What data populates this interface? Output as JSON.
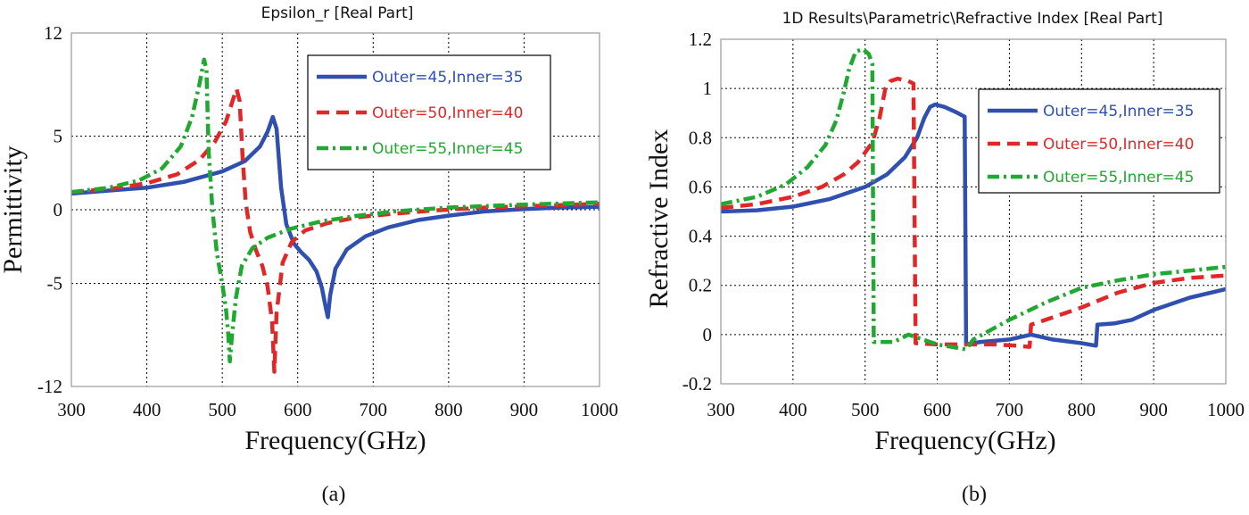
{
  "panels": [
    {
      "caption": "(a)",
      "frame_color": "#999999",
      "legend_position": "top-right"
    },
    {
      "caption": "(b)",
      "frame_color": "#999999",
      "legend_position": "right"
    }
  ],
  "chart_data": [
    {
      "type": "line",
      "title": "Epsilon_r [Real Part]",
      "xlabel": "Frequency(GHz)",
      "ylabel": "Permittivity",
      "xlim": [
        300,
        1000
      ],
      "ylim": [
        -12,
        12
      ],
      "xticks": [
        300,
        400,
        500,
        600,
        700,
        800,
        900,
        1000
      ],
      "xtick_labels": [
        "300",
        "400",
        "500",
        "600",
        "700",
        "800",
        "900",
        "1000"
      ],
      "yticks": [
        -12,
        -5,
        0,
        5,
        12
      ],
      "ytick_labels": [
        "-12",
        "-5",
        "0",
        "5",
        "12"
      ],
      "grid": true,
      "series": [
        {
          "name": "Outer=45,Inner=35",
          "color": "#3050b0",
          "style": "solid",
          "points": [
            [
              300,
              1.1
            ],
            [
              350,
              1.3
            ],
            [
              400,
              1.5
            ],
            [
              450,
              1.9
            ],
            [
              500,
              2.6
            ],
            [
              530,
              3.3
            ],
            [
              550,
              4.3
            ],
            [
              560,
              5.3
            ],
            [
              567,
              6.3
            ],
            [
              572,
              5.5
            ],
            [
              578,
              1.5
            ],
            [
              585,
              -1.0
            ],
            [
              595,
              -2.3
            ],
            [
              605,
              -2.9
            ],
            [
              615,
              -3.4
            ],
            [
              625,
              -4.2
            ],
            [
              632,
              -5.3
            ],
            [
              637,
              -6.6
            ],
            [
              640,
              -7.3
            ],
            [
              643,
              -5.8
            ],
            [
              650,
              -4.0
            ],
            [
              665,
              -2.7
            ],
            [
              690,
              -1.8
            ],
            [
              720,
              -1.2
            ],
            [
              760,
              -0.7
            ],
            [
              800,
              -0.4
            ],
            [
              850,
              -0.1
            ],
            [
              900,
              0.05
            ],
            [
              950,
              0.15
            ],
            [
              1000,
              0.2
            ]
          ]
        },
        {
          "name": "Outer=50,Inner=40",
          "color": "#e02828",
          "style": "dashed",
          "points": [
            [
              300,
              1.2
            ],
            [
              350,
              1.4
            ],
            [
              400,
              1.8
            ],
            [
              440,
              2.4
            ],
            [
              470,
              3.4
            ],
            [
              490,
              4.6
            ],
            [
              505,
              6.0
            ],
            [
              515,
              7.6
            ],
            [
              519,
              8.2
            ],
            [
              523,
              7.4
            ],
            [
              527,
              3.5
            ],
            [
              531,
              0.5
            ],
            [
              537,
              -1.5
            ],
            [
              545,
              -2.8
            ],
            [
              553,
              -3.8
            ],
            [
              560,
              -5.2
            ],
            [
              566,
              -7.6
            ],
            [
              569,
              -11.0
            ],
            [
              572,
              -7.0
            ],
            [
              580,
              -3.6
            ],
            [
              592,
              -2.2
            ],
            [
              610,
              -1.4
            ],
            [
              640,
              -0.9
            ],
            [
              680,
              -0.5
            ],
            [
              720,
              -0.3
            ],
            [
              780,
              -0.05
            ],
            [
              850,
              0.15
            ],
            [
              1000,
              0.4
            ]
          ]
        },
        {
          "name": "Outer=55,Inner=45",
          "color": "#20a830",
          "style": "dashdot",
          "points": [
            [
              300,
              1.2
            ],
            [
              350,
              1.5
            ],
            [
              390,
              2.0
            ],
            [
              420,
              2.8
            ],
            [
              445,
              4.3
            ],
            [
              460,
              6.3
            ],
            [
              470,
              8.6
            ],
            [
              476,
              10.2
            ],
            [
              479,
              9.5
            ],
            [
              482,
              4.0
            ],
            [
              487,
              0.0
            ],
            [
              493,
              -3.0
            ],
            [
              500,
              -5.0
            ],
            [
              505,
              -6.8
            ],
            [
              508,
              -8.5
            ],
            [
              510,
              -10.3
            ],
            [
              513,
              -8.5
            ],
            [
              518,
              -6.0
            ],
            [
              526,
              -3.8
            ],
            [
              540,
              -2.6
            ],
            [
              560,
              -1.9
            ],
            [
              590,
              -1.3
            ],
            [
              630,
              -0.8
            ],
            [
              680,
              -0.4
            ],
            [
              730,
              -0.1
            ],
            [
              800,
              0.15
            ],
            [
              900,
              0.35
            ],
            [
              1000,
              0.5
            ]
          ]
        }
      ]
    },
    {
      "type": "line",
      "title": "1D Results\\Parametric\\Refractive Index [Real Part]",
      "xlabel": "Frequency(GHz)",
      "ylabel": "Refractive Index",
      "xlim": [
        300,
        1000
      ],
      "ylim": [
        -0.2,
        1.2
      ],
      "xticks": [
        300,
        400,
        500,
        600,
        700,
        800,
        900,
        1000
      ],
      "xtick_labels": [
        "300",
        "400",
        "500",
        "600",
        "700",
        "800",
        "900",
        "1000"
      ],
      "yticks": [
        -0.2,
        0,
        0.2,
        0.4,
        0.6,
        0.8,
        1,
        1.2
      ],
      "ytick_labels": [
        "-0.2",
        "0",
        "0.2",
        "0.4",
        "0.6",
        "0.8",
        "1",
        "1.2"
      ],
      "grid": true,
      "series": [
        {
          "name": "Outer=45,Inner=35",
          "color": "#3050b0",
          "style": "solid",
          "points": [
            [
              300,
              0.5
            ],
            [
              350,
              0.505
            ],
            [
              400,
              0.52
            ],
            [
              450,
              0.55
            ],
            [
              500,
              0.6
            ],
            [
              530,
              0.65
            ],
            [
              555,
              0.72
            ],
            [
              572,
              0.8
            ],
            [
              582,
              0.88
            ],
            [
              590,
              0.925
            ],
            [
              597,
              0.935
            ],
            [
              610,
              0.925
            ],
            [
              625,
              0.905
            ],
            [
              638,
              0.885
            ],
            [
              640,
              -0.04
            ],
            [
              660,
              -0.03
            ],
            [
              700,
              -0.02
            ],
            [
              730,
              0.0
            ],
            [
              760,
              -0.02
            ],
            [
              800,
              -0.035
            ],
            [
              820,
              -0.045
            ],
            [
              822,
              0.04
            ],
            [
              845,
              0.045
            ],
            [
              870,
              0.06
            ],
            [
              900,
              0.1
            ],
            [
              950,
              0.15
            ],
            [
              1000,
              0.185
            ]
          ]
        },
        {
          "name": "Outer=50,Inner=40",
          "color": "#e02828",
          "style": "dashed",
          "points": [
            [
              300,
              0.515
            ],
            [
              350,
              0.53
            ],
            [
              400,
              0.56
            ],
            [
              440,
              0.6
            ],
            [
              470,
              0.65
            ],
            [
              490,
              0.7
            ],
            [
              510,
              0.78
            ],
            [
              520,
              0.88
            ],
            [
              528,
              1.0
            ],
            [
              535,
              1.03
            ],
            [
              545,
              1.04
            ],
            [
              560,
              1.03
            ],
            [
              567,
              1.02
            ],
            [
              570,
              -0.035
            ],
            [
              600,
              -0.04
            ],
            [
              640,
              -0.04
            ],
            [
              680,
              -0.04
            ],
            [
              710,
              -0.045
            ],
            [
              728,
              -0.05
            ],
            [
              730,
              0.04
            ],
            [
              760,
              0.07
            ],
            [
              800,
              0.11
            ],
            [
              850,
              0.17
            ],
            [
              900,
              0.21
            ],
            [
              950,
              0.23
            ],
            [
              1000,
              0.24
            ]
          ]
        },
        {
          "name": "Outer=55,Inner=45",
          "color": "#20a830",
          "style": "dashdot",
          "points": [
            [
              300,
              0.53
            ],
            [
              350,
              0.56
            ],
            [
              390,
              0.61
            ],
            [
              420,
              0.68
            ],
            [
              445,
              0.77
            ],
            [
              460,
              0.87
            ],
            [
              470,
              0.98
            ],
            [
              478,
              1.08
            ],
            [
              487,
              1.15
            ],
            [
              497,
              1.16
            ],
            [
              505,
              1.14
            ],
            [
              510,
              1.1
            ],
            [
              512,
              -0.03
            ],
            [
              540,
              -0.03
            ],
            [
              560,
              0.0
            ],
            [
              600,
              -0.04
            ],
            [
              620,
              -0.05
            ],
            [
              640,
              -0.06
            ],
            [
              650,
              -0.02
            ],
            [
              700,
              0.06
            ],
            [
              750,
              0.13
            ],
            [
              800,
              0.19
            ],
            [
              850,
              0.22
            ],
            [
              900,
              0.245
            ],
            [
              950,
              0.26
            ],
            [
              1000,
              0.275
            ]
          ]
        }
      ]
    }
  ]
}
